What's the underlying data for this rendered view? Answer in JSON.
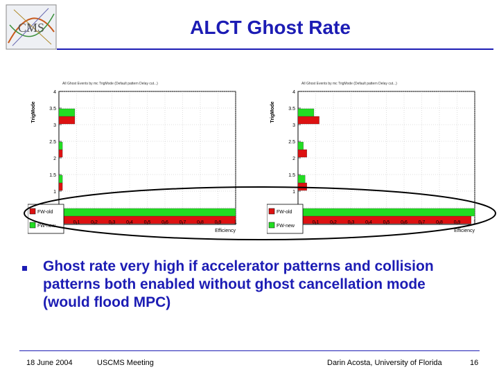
{
  "slide": {
    "title": "ALCT Ghost Rate",
    "logo_text": "CMS",
    "bullet": "Ghost rate very high if accelerator patterns and collision patterns both enabled without ghost cancellation mode (would flood MPC)",
    "footer": {
      "date": "18 June 2004",
      "meeting": "USCMS Meeting",
      "author": "Darin Acosta, University of Florida",
      "page": "16"
    }
  },
  "colors": {
    "title": "#1c1cb4",
    "old_series": "#dd1111",
    "new_series": "#22dd22",
    "highlight_oval": "#000000"
  },
  "chart_data": [
    {
      "type": "bar",
      "orientation": "horizontal",
      "header": "All Ghost Events by mc TrigMode (Default pattern Delay cut...)",
      "xlabel": "Efficiency",
      "ylabel": "TrigMode",
      "xlim": [
        0,
        1
      ],
      "ylim": [
        0,
        4
      ],
      "x_ticks": [
        "0.1",
        "0.2",
        "0.3",
        "0.4",
        "0.5",
        "0.6",
        "0.7",
        "0.8",
        "0.9",
        "1"
      ],
      "y_ticks": [
        "0.5",
        "1",
        "1.5",
        "2",
        "2.5",
        "3",
        "3.5",
        "4"
      ],
      "categories": [
        0,
        1,
        2,
        3
      ],
      "series": [
        {
          "name": "FW-old",
          "values": [
            1.0,
            0.02,
            0.02,
            0.09
          ]
        },
        {
          "name": "FW-new",
          "values": [
            1.0,
            0.02,
            0.02,
            0.09
          ]
        }
      ],
      "grid": true,
      "legend": "bottom-left"
    },
    {
      "type": "bar",
      "orientation": "horizontal",
      "header": "All Ghost Events by mc TrigMode (Default pattern Delay cut...)",
      "xlabel": "Efficiency",
      "ylabel": "TrigMode",
      "xlim": [
        0,
        1
      ],
      "ylim": [
        0,
        4
      ],
      "x_ticks": [
        "0.1",
        "0.2",
        "0.3",
        "0.4",
        "0.5",
        "0.6",
        "0.7",
        "0.8",
        "0.9",
        "1"
      ],
      "y_ticks": [
        "0.5",
        "1",
        "1.5",
        "2",
        "2.5",
        "3",
        "3.5",
        "4"
      ],
      "categories": [
        0,
        1,
        2,
        3
      ],
      "series": [
        {
          "name": "FW-old",
          "values": [
            0.98,
            0.05,
            0.05,
            0.12
          ]
        },
        {
          "name": "FW-new",
          "values": [
            1.0,
            0.04,
            0.03,
            0.09
          ]
        }
      ],
      "grid": true,
      "legend": "bottom-left"
    }
  ]
}
